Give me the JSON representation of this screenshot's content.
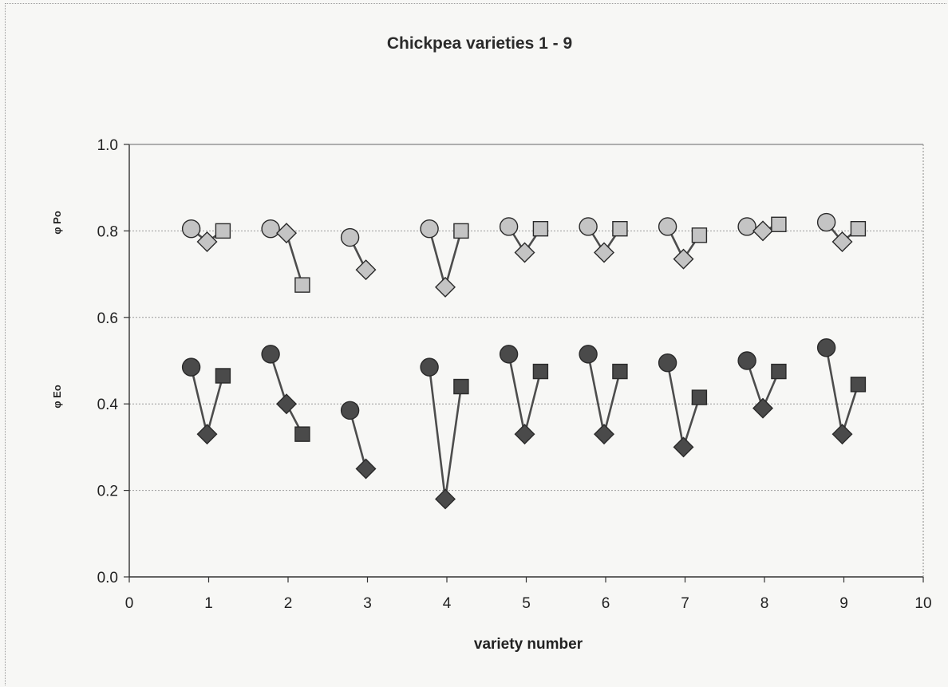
{
  "chart_data": {
    "type": "scatter",
    "title": "Chickpea varieties 1 - 9",
    "xlabel": "variety number",
    "ylabel_upper": "φ Po",
    "ylabel_lower": "φ Eo",
    "xlim": [
      0,
      10
    ],
    "ylim": [
      0,
      1.0
    ],
    "x_ticks": [
      "0",
      "1",
      "2",
      "3",
      "4",
      "5",
      "6",
      "7",
      "8",
      "9",
      "10"
    ],
    "y_ticks": [
      "0.0",
      "0.2",
      "0.4",
      "0.6",
      "0.8",
      "1.0"
    ],
    "grid": "horizontal",
    "colors": {
      "upper_marker": "#c4c4c4",
      "lower_marker": "#4a4a4a",
      "line": "#4d4d4d",
      "grid": "#9a9a9a"
    },
    "groups": [
      {
        "name": "φ Po",
        "marker_color": "#c4c4c4",
        "series": [
          {
            "marker": "circle",
            "points": [
              [
                0.78,
                0.805
              ],
              [
                1.78,
                0.805
              ],
              [
                2.78,
                0.785
              ],
              [
                3.78,
                0.805
              ],
              [
                4.78,
                0.81
              ],
              [
                5.78,
                0.81
              ],
              [
                6.78,
                0.81
              ],
              [
                7.78,
                0.81
              ],
              [
                8.78,
                0.82
              ]
            ]
          },
          {
            "marker": "diamond",
            "points": [
              [
                0.98,
                0.775
              ],
              [
                1.98,
                0.795
              ],
              [
                2.98,
                0.71
              ],
              [
                3.98,
                0.67
              ],
              [
                4.98,
                0.75
              ],
              [
                5.98,
                0.75
              ],
              [
                6.98,
                0.735
              ],
              [
                7.98,
                0.8
              ],
              [
                8.98,
                0.775
              ]
            ]
          },
          {
            "marker": "square",
            "points": [
              [
                1.18,
                0.8
              ],
              [
                2.18,
                0.675
              ],
              null,
              [
                4.18,
                0.8
              ],
              [
                5.18,
                0.805
              ],
              [
                6.18,
                0.805
              ],
              [
                7.18,
                0.79
              ],
              [
                8.18,
                0.815
              ],
              [
                9.18,
                0.805
              ]
            ]
          }
        ]
      },
      {
        "name": "φ Eo",
        "marker_color": "#4a4a4a",
        "series": [
          {
            "marker": "circle",
            "points": [
              [
                0.78,
                0.485
              ],
              [
                1.78,
                0.515
              ],
              [
                2.78,
                0.385
              ],
              [
                3.78,
                0.485
              ],
              [
                4.78,
                0.515
              ],
              [
                5.78,
                0.515
              ],
              [
                6.78,
                0.495
              ],
              [
                7.78,
                0.5
              ],
              [
                8.78,
                0.53
              ]
            ]
          },
          {
            "marker": "diamond",
            "points": [
              [
                0.98,
                0.33
              ],
              [
                1.98,
                0.4
              ],
              [
                2.98,
                0.25
              ],
              [
                3.98,
                0.18
              ],
              [
                4.98,
                0.33
              ],
              [
                5.98,
                0.33
              ],
              [
                6.98,
                0.3
              ],
              [
                7.98,
                0.39
              ],
              [
                8.98,
                0.33
              ]
            ]
          },
          {
            "marker": "square",
            "points": [
              [
                1.18,
                0.465
              ],
              [
                2.18,
                0.33
              ],
              null,
              [
                4.18,
                0.44
              ],
              [
                5.18,
                0.475
              ],
              [
                6.18,
                0.475
              ],
              [
                7.18,
                0.415
              ],
              [
                8.18,
                0.475
              ],
              [
                9.18,
                0.445
              ]
            ]
          }
        ]
      }
    ]
  }
}
